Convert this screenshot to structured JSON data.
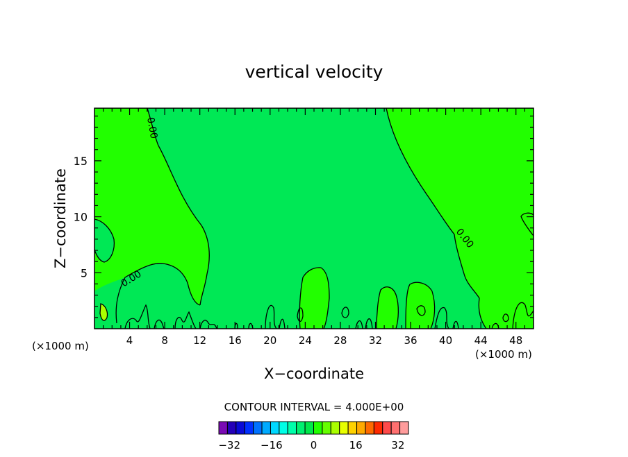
{
  "chart_data": {
    "type": "contour",
    "title": "vertical velocity",
    "xlabel": "X−coordinate",
    "ylabel": "Z−coordinate",
    "x_units": "(×1000 m)",
    "y_units": "(×1000 m)",
    "xlim": [
      0,
      50
    ],
    "ylim": [
      0,
      19.7
    ],
    "xticks": [
      4,
      8,
      12,
      16,
      20,
      24,
      28,
      32,
      36,
      40,
      44,
      48
    ],
    "yticks": [
      5,
      10,
      15
    ],
    "grid": false,
    "contour_interval_text": "CONTOUR INTERVAL = 4.000E+00",
    "contour_labels": [
      "0.00",
      "0.00",
      "0.00"
    ],
    "fill_colors": {
      "positive_region": "#22ff00",
      "negative_region": "#00e855"
    },
    "colorbar": {
      "orientation": "horizontal",
      "min": -36,
      "max": 36,
      "step": 4,
      "tick_labels": [
        "−32",
        "−16",
        "0",
        "16",
        "32"
      ],
      "tick_values": [
        -32,
        -16,
        0,
        16,
        32
      ],
      "colors": [
        "#7a0ab4",
        "#2400b8",
        "#0a0ad6",
        "#0030ff",
        "#0072ff",
        "#00aaff",
        "#00d8ff",
        "#00ffe6",
        "#00ffaa",
        "#00f070",
        "#00e84a",
        "#22ff00",
        "#66ff00",
        "#aaff00",
        "#e8ff00",
        "#ffd200",
        "#ffaa00",
        "#ff6a00",
        "#ff2a00",
        "#ff4a4a",
        "#ff7070",
        "#ff9c9c"
      ]
    }
  }
}
